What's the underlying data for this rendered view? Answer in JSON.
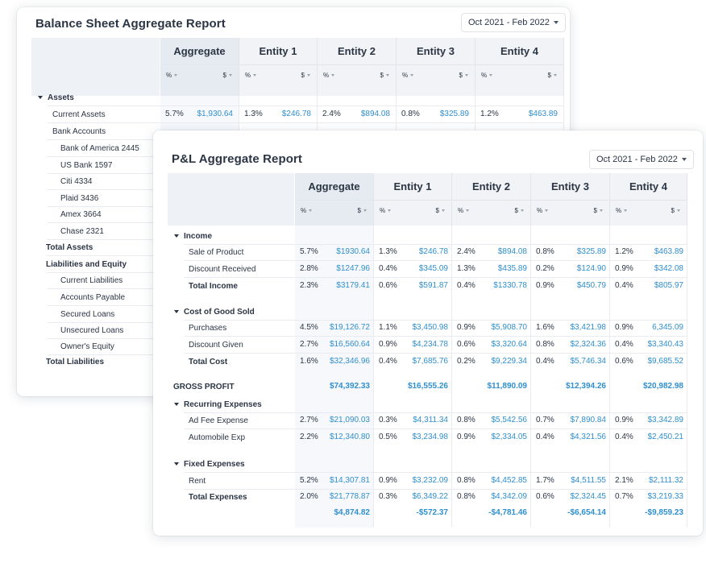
{
  "balance_sheet": {
    "title": "Balance Sheet Aggregate Report",
    "date_range": "Oct 2021 - Feb 2022",
    "columns": [
      "Aggregate",
      "Entity 1",
      "Entity 2",
      "Entity 3",
      "Entity 4"
    ],
    "pct_label": "%",
    "usd_label": "$",
    "rows": [
      {
        "label": "Assets",
        "kind": "section"
      },
      {
        "label": "Current Assets",
        "kind": "item",
        "values": [
          [
            "5.7%",
            "$1,930.64"
          ],
          [
            "1.3%",
            "$246.78"
          ],
          [
            "2.4%",
            "$894.08"
          ],
          [
            "0.8%",
            "$325.89"
          ],
          [
            "1.2%",
            "$463.89"
          ]
        ]
      },
      {
        "label": "Bank Accounts",
        "kind": "item"
      },
      {
        "label": "Bank of America 2445",
        "kind": "sub"
      },
      {
        "label": "US Bank 1597",
        "kind": "sub"
      },
      {
        "label": "Citi 4334",
        "kind": "sub"
      },
      {
        "label": "Plaid 3436",
        "kind": "sub"
      },
      {
        "label": "Amex 3664",
        "kind": "sub"
      },
      {
        "label": "Chase 2321",
        "kind": "sub"
      },
      {
        "label": "Total Assets",
        "kind": "total"
      },
      {
        "label": "Liabilities and Equity",
        "kind": "total"
      },
      {
        "label": "Current Liabilities",
        "kind": "sub"
      },
      {
        "label": "Accounts Payable",
        "kind": "sub"
      },
      {
        "label": "Secured Loans",
        "kind": "sub"
      },
      {
        "label": "Unsecured Loans",
        "kind": "sub"
      },
      {
        "label": "Owner's Equity",
        "kind": "sub"
      },
      {
        "label": "Total Liabilities",
        "kind": "totalL"
      }
    ]
  },
  "pl": {
    "title": "P&L Aggregate Report",
    "date_range": "Oct 2021 - Feb 2022",
    "columns": [
      "Aggregate",
      "Entity 1",
      "Entity 2",
      "Entity 3",
      "Entity 4"
    ],
    "pct_label": "%",
    "usd_label": "$",
    "rows": [
      {
        "label": "Income",
        "kind": "section"
      },
      {
        "label": "Sale of Product",
        "kind": "item",
        "values": [
          [
            "5.7%",
            "$1930.64"
          ],
          [
            "1.3%",
            "$246.78"
          ],
          [
            "2.4%",
            "$894.08"
          ],
          [
            "0.8%",
            "$325.89"
          ],
          [
            "1.2%",
            "$463.89"
          ]
        ]
      },
      {
        "label": "Discount Received",
        "kind": "item",
        "values": [
          [
            "2.8%",
            "$1247.96"
          ],
          [
            "0.4%",
            "$345.09"
          ],
          [
            "1.3%",
            "$435.89"
          ],
          [
            "0.2%",
            "$124.90"
          ],
          [
            "0.9%",
            "$342.08"
          ]
        ]
      },
      {
        "label": "Total Income",
        "kind": "total",
        "values": [
          [
            "2.3%",
            "$3179.41"
          ],
          [
            "0.6%",
            "$591.87"
          ],
          [
            "0.4%",
            "$1330.78"
          ],
          [
            "0.9%",
            "$450.79"
          ],
          [
            "0.4%",
            "$805.97"
          ]
        ]
      },
      {
        "label": "Cost of Good Sold",
        "kind": "section"
      },
      {
        "label": "Purchases",
        "kind": "item",
        "values": [
          [
            "4.5%",
            "$19,126.72"
          ],
          [
            "1.1%",
            "$3,450.98"
          ],
          [
            "0.9%",
            "$5,908.70"
          ],
          [
            "1.6%",
            "$3,421.98"
          ],
          [
            "0.9%",
            "6,345.09"
          ]
        ]
      },
      {
        "label": "Discount Given",
        "kind": "item",
        "values": [
          [
            "2.7%",
            "$16,560.64"
          ],
          [
            "0.9%",
            "$4,234.78"
          ],
          [
            "0.6%",
            "$3,320.64"
          ],
          [
            "0.8%",
            "$2,324.36"
          ],
          [
            "0.4%",
            "$3,340.43"
          ]
        ]
      },
      {
        "label": "Total Cost",
        "kind": "total",
        "values": [
          [
            "1.6%",
            "$32,346.96"
          ],
          [
            "0.4%",
            "$7,685.76"
          ],
          [
            "0.2%",
            "$9,229.34"
          ],
          [
            "0.4%",
            "$5,746.34"
          ],
          [
            "0.6%",
            "$9,685.52"
          ]
        ]
      },
      {
        "label": "GROSS PROFIT",
        "kind": "gross",
        "totals": [
          "$74,392.33",
          "$16,555.26",
          "$11,890.09",
          "$12,394.26",
          "$20,982.98"
        ]
      },
      {
        "label": "Recurring Expenses",
        "kind": "section"
      },
      {
        "label": "Ad Fee Expense",
        "kind": "item",
        "values": [
          [
            "2.7%",
            "$21,090.03"
          ],
          [
            "0.3%",
            "$4,311.34"
          ],
          [
            "0.8%",
            "$5,542.56"
          ],
          [
            "0.7%",
            "$7,890.84"
          ],
          [
            "0.9%",
            "$3,342.89"
          ]
        ]
      },
      {
        "label": "Automobile Exp",
        "kind": "item",
        "values": [
          [
            "2.2%",
            "$12,340.80"
          ],
          [
            "0.5%",
            "$3,234.98"
          ],
          [
            "0.9%",
            "$2,334.05"
          ],
          [
            "0.4%",
            "$4,321.56"
          ],
          [
            "0.4%",
            "$2,450.21"
          ]
        ]
      },
      {
        "label": "Fixed Expenses",
        "kind": "section"
      },
      {
        "label": "Rent",
        "kind": "item",
        "values": [
          [
            "5.2%",
            "$14,307.81"
          ],
          [
            "0.9%",
            "$3,232.09"
          ],
          [
            "0.8%",
            "$4,452.85"
          ],
          [
            "1.7%",
            "$4,511.55"
          ],
          [
            "2.1%",
            "$2,111.32"
          ]
        ]
      },
      {
        "label": "Total Expenses",
        "kind": "total",
        "values": [
          [
            "2.0%",
            "$21,778.87"
          ],
          [
            "0.3%",
            "$6,349.22"
          ],
          [
            "0.8%",
            "$4,342.09"
          ],
          [
            "0.6%",
            "$2,324.45"
          ],
          [
            "0.7%",
            "$3,219.33"
          ]
        ]
      },
      {
        "label": "",
        "kind": "net",
        "totals": [
          "$4,874.82",
          "-$572.37",
          "-$4,781.46",
          "-$6,654.14",
          "-$9,859.23"
        ]
      }
    ]
  }
}
